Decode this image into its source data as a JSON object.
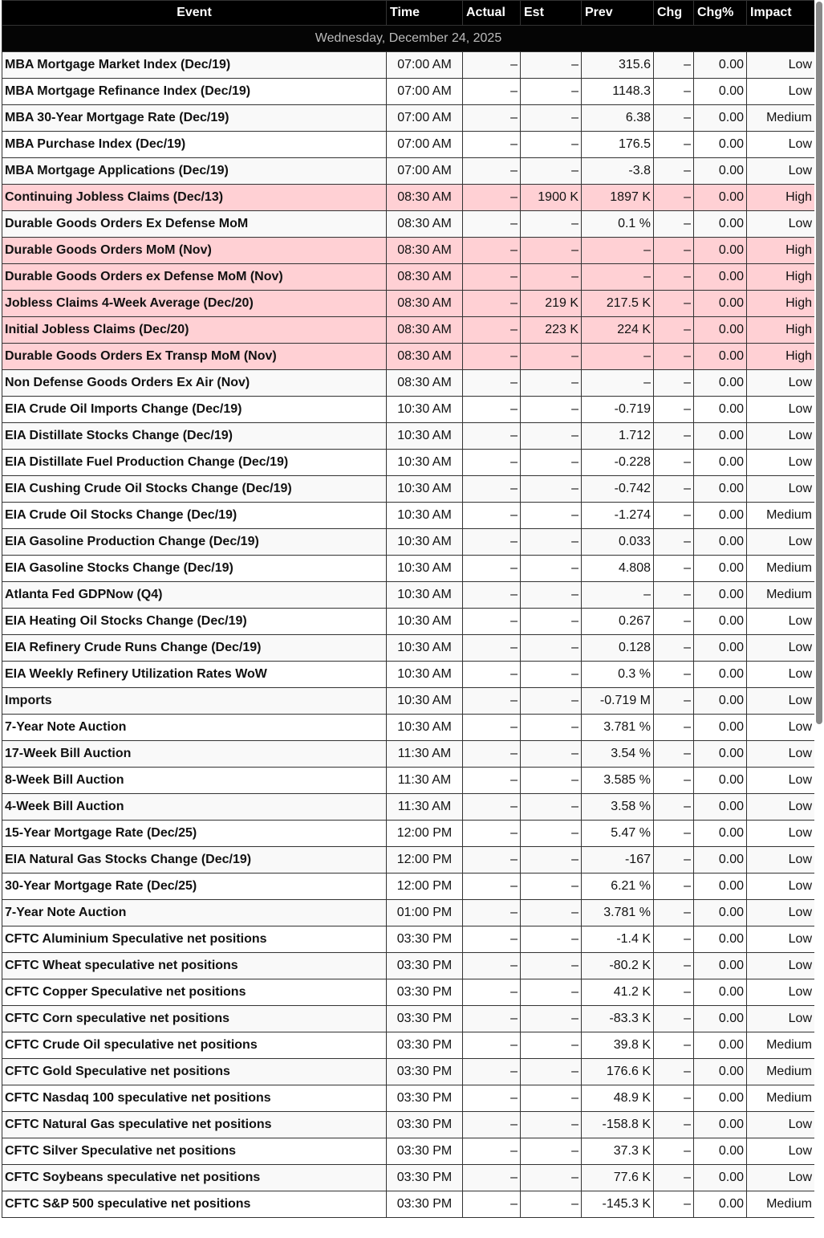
{
  "columns": [
    "Event",
    "Time",
    "Actual",
    "Est",
    "Prev",
    "Chg",
    "Chg%",
    "Impact"
  ],
  "date": "Wednesday, December 24, 2025",
  "colors": {
    "high_row": "#ffd0d4",
    "header": "#000000"
  },
  "rows": [
    [
      "MBA Mortgage Market Index (Dec/19)",
      "07:00 AM",
      "–",
      "–",
      "315.6",
      "–",
      "0.00",
      "Low"
    ],
    [
      "MBA Mortgage Refinance Index (Dec/19)",
      "07:00 AM",
      "–",
      "–",
      "1148.3",
      "–",
      "0.00",
      "Low"
    ],
    [
      "MBA 30-Year Mortgage Rate (Dec/19)",
      "07:00 AM",
      "–",
      "–",
      "6.38",
      "–",
      "0.00",
      "Medium"
    ],
    [
      "MBA Purchase Index (Dec/19)",
      "07:00 AM",
      "–",
      "–",
      "176.5",
      "–",
      "0.00",
      "Low"
    ],
    [
      "MBA Mortgage Applications (Dec/19)",
      "07:00 AM",
      "–",
      "–",
      "-3.8",
      "–",
      "0.00",
      "Low"
    ],
    [
      "Continuing Jobless Claims (Dec/13)",
      "08:30 AM",
      "–",
      "1900 K",
      "1897 K",
      "–",
      "0.00",
      "High"
    ],
    [
      "Durable Goods Orders Ex Defense MoM",
      "08:30 AM",
      "–",
      "–",
      "0.1 %",
      "–",
      "0.00",
      "Low"
    ],
    [
      "Durable Goods Orders MoM (Nov)",
      "08:30 AM",
      "–",
      "–",
      "–",
      "–",
      "0.00",
      "High"
    ],
    [
      "Durable Goods Orders ex Defense MoM (Nov)",
      "08:30 AM",
      "–",
      "–",
      "–",
      "–",
      "0.00",
      "High"
    ],
    [
      "Jobless Claims 4-Week Average (Dec/20)",
      "08:30 AM",
      "–",
      "219 K",
      "217.5 K",
      "–",
      "0.00",
      "High"
    ],
    [
      "Initial Jobless Claims (Dec/20)",
      "08:30 AM",
      "–",
      "223 K",
      "224 K",
      "–",
      "0.00",
      "High"
    ],
    [
      "Durable Goods Orders Ex Transp MoM (Nov)",
      "08:30 AM",
      "–",
      "–",
      "–",
      "–",
      "0.00",
      "High"
    ],
    [
      "Non Defense Goods Orders Ex Air (Nov)",
      "08:30 AM",
      "–",
      "–",
      "–",
      "–",
      "0.00",
      "Low"
    ],
    [
      "EIA Crude Oil Imports Change (Dec/19)",
      "10:30 AM",
      "–",
      "–",
      "-0.719",
      "–",
      "0.00",
      "Low"
    ],
    [
      "EIA Distillate Stocks Change (Dec/19)",
      "10:30 AM",
      "–",
      "–",
      "1.712",
      "–",
      "0.00",
      "Low"
    ],
    [
      "EIA Distillate Fuel Production Change (Dec/19)",
      "10:30 AM",
      "–",
      "–",
      "-0.228",
      "–",
      "0.00",
      "Low"
    ],
    [
      "EIA Cushing Crude Oil Stocks Change (Dec/19)",
      "10:30 AM",
      "–",
      "–",
      "-0.742",
      "–",
      "0.00",
      "Low"
    ],
    [
      "EIA Crude Oil Stocks Change (Dec/19)",
      "10:30 AM",
      "–",
      "–",
      "-1.274",
      "–",
      "0.00",
      "Medium"
    ],
    [
      "EIA Gasoline Production Change (Dec/19)",
      "10:30 AM",
      "–",
      "–",
      "0.033",
      "–",
      "0.00",
      "Low"
    ],
    [
      "EIA Gasoline Stocks Change (Dec/19)",
      "10:30 AM",
      "–",
      "–",
      "4.808",
      "–",
      "0.00",
      "Medium"
    ],
    [
      "Atlanta Fed GDPNow (Q4)",
      "10:30 AM",
      "–",
      "–",
      "–",
      "–",
      "0.00",
      "Medium"
    ],
    [
      "EIA Heating Oil Stocks Change (Dec/19)",
      "10:30 AM",
      "–",
      "–",
      "0.267",
      "–",
      "0.00",
      "Low"
    ],
    [
      "EIA Refinery Crude Runs Change (Dec/19)",
      "10:30 AM",
      "–",
      "–",
      "0.128",
      "–",
      "0.00",
      "Low"
    ],
    [
      "EIA Weekly Refinery Utilization Rates WoW",
      "10:30 AM",
      "–",
      "–",
      "0.3 %",
      "–",
      "0.00",
      "Low"
    ],
    [
      "Imports",
      "10:30 AM",
      "–",
      "–",
      "-0.719 M",
      "–",
      "0.00",
      "Low"
    ],
    [
      "7-Year Note Auction",
      "10:30 AM",
      "–",
      "–",
      "3.781 %",
      "–",
      "0.00",
      "Low"
    ],
    [
      "17-Week Bill Auction",
      "11:30 AM",
      "–",
      "–",
      "3.54 %",
      "–",
      "0.00",
      "Low"
    ],
    [
      "8-Week Bill Auction",
      "11:30 AM",
      "–",
      "–",
      "3.585 %",
      "–",
      "0.00",
      "Low"
    ],
    [
      "4-Week Bill Auction",
      "11:30 AM",
      "–",
      "–",
      "3.58 %",
      "–",
      "0.00",
      "Low"
    ],
    [
      "15-Year Mortgage Rate (Dec/25)",
      "12:00 PM",
      "–",
      "–",
      "5.47 %",
      "–",
      "0.00",
      "Low"
    ],
    [
      "EIA Natural Gas Stocks Change (Dec/19)",
      "12:00 PM",
      "–",
      "–",
      "-167",
      "–",
      "0.00",
      "Low"
    ],
    [
      "30-Year Mortgage Rate (Dec/25)",
      "12:00 PM",
      "–",
      "–",
      "6.21 %",
      "–",
      "0.00",
      "Low"
    ],
    [
      "7-Year Note Auction",
      "01:00 PM",
      "–",
      "–",
      "3.781 %",
      "–",
      "0.00",
      "Low"
    ],
    [
      "CFTC Aluminium Speculative net positions",
      "03:30 PM",
      "–",
      "–",
      "-1.4 K",
      "–",
      "0.00",
      "Low"
    ],
    [
      "CFTC Wheat speculative net positions",
      "03:30 PM",
      "–",
      "–",
      "-80.2 K",
      "–",
      "0.00",
      "Low"
    ],
    [
      "CFTC Copper Speculative net positions",
      "03:30 PM",
      "–",
      "–",
      "41.2 K",
      "–",
      "0.00",
      "Low"
    ],
    [
      "CFTC Corn speculative net positions",
      "03:30 PM",
      "–",
      "–",
      "-83.3 K",
      "–",
      "0.00",
      "Low"
    ],
    [
      "CFTC Crude Oil speculative net positions",
      "03:30 PM",
      "–",
      "–",
      "39.8 K",
      "–",
      "0.00",
      "Medium"
    ],
    [
      "CFTC Gold Speculative net positions",
      "03:30 PM",
      "–",
      "–",
      "176.6 K",
      "–",
      "0.00",
      "Medium"
    ],
    [
      "CFTC Nasdaq 100 speculative net positions",
      "03:30 PM",
      "–",
      "–",
      "48.9 K",
      "–",
      "0.00",
      "Medium"
    ],
    [
      "CFTC Natural Gas speculative net positions",
      "03:30 PM",
      "–",
      "–",
      "-158.8 K",
      "–",
      "0.00",
      "Low"
    ],
    [
      "CFTC Silver Speculative net positions",
      "03:30 PM",
      "–",
      "–",
      "37.3 K",
      "–",
      "0.00",
      "Low"
    ],
    [
      "CFTC Soybeans speculative net positions",
      "03:30 PM",
      "–",
      "–",
      "77.6 K",
      "–",
      "0.00",
      "Low"
    ],
    [
      "CFTC S&P 500 speculative net positions",
      "03:30 PM",
      "–",
      "–",
      "-145.3 K",
      "–",
      "0.00",
      "Medium"
    ]
  ]
}
